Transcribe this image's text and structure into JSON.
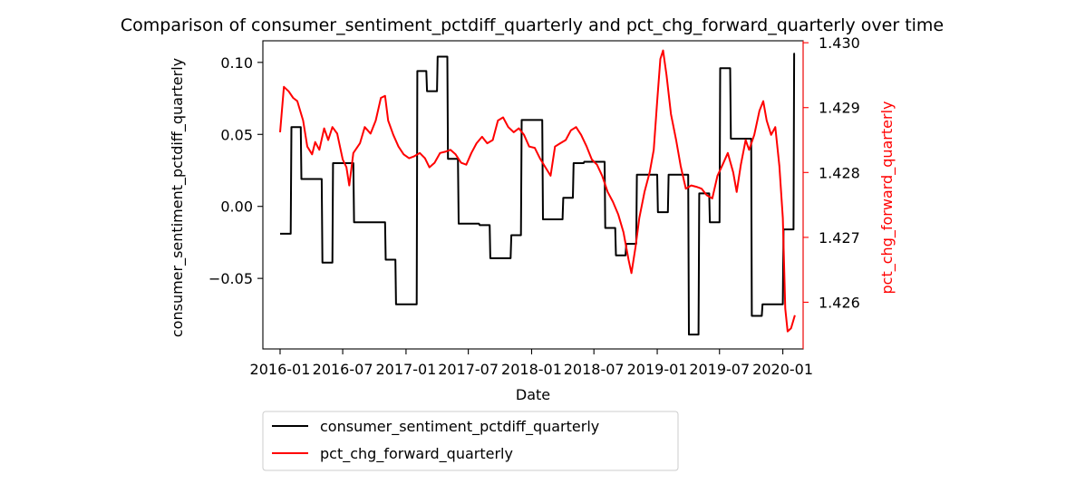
{
  "chart_data": {
    "type": "line",
    "title": "Comparison of consumer_sentiment_pctdiff_quarterly and pct_chg_forward_quarterly over time",
    "xlabel": "Date",
    "ylabel_left": "consumer_sentiment_pctdiff_quarterly",
    "ylabel_right": "pct_chg_forward_quarterly",
    "x_ticks": [
      "2016-01",
      "2016-07",
      "2017-01",
      "2017-07",
      "2018-01",
      "2018-07",
      "2019-01",
      "2019-07",
      "2020-01"
    ],
    "y_left_ticks": [
      "−0.05",
      "0.00",
      "0.05",
      "0.10"
    ],
    "y_left_tick_values": [
      -0.05,
      0.0,
      0.05,
      0.1
    ],
    "y_right_ticks": [
      "1.426",
      "1.427",
      "1.428",
      "1.429",
      "1.430"
    ],
    "y_right_tick_values": [
      1.426,
      1.427,
      1.428,
      1.429,
      1.43
    ],
    "ylim_left": [
      -0.099,
      0.115
    ],
    "ylim_right": [
      1.42528,
      1.43003
    ],
    "xlim": [
      "2015-11-12",
      "2020-02-29"
    ],
    "legend_position": "below",
    "series": [
      {
        "name": "consumer_sentiment_pctdiff_quarterly",
        "axis": "left",
        "color": "#000000",
        "points": [
          [
            "2016-01-01",
            -0.019
          ],
          [
            "2016-02-01",
            -0.019
          ],
          [
            "2016-02-03",
            0.055
          ],
          [
            "2016-03-01",
            0.055
          ],
          [
            "2016-03-03",
            0.019
          ],
          [
            "2016-05-01",
            0.019
          ],
          [
            "2016-05-03",
            -0.039
          ],
          [
            "2016-06-01",
            -0.039
          ],
          [
            "2016-06-03",
            0.03
          ],
          [
            "2016-08-01",
            0.03
          ],
          [
            "2016-08-03",
            -0.011
          ],
          [
            "2016-11-01",
            -0.011
          ],
          [
            "2016-11-03",
            -0.037
          ],
          [
            "2016-12-01",
            -0.037
          ],
          [
            "2016-12-03",
            -0.068
          ],
          [
            "2017-02-01",
            -0.068
          ],
          [
            "2017-02-03",
            0.094
          ],
          [
            "2017-03-01",
            0.094
          ],
          [
            "2017-03-03",
            0.08
          ],
          [
            "2017-04-01",
            0.08
          ],
          [
            "2017-04-03",
            0.104
          ],
          [
            "2017-05-01",
            0.104
          ],
          [
            "2017-05-03",
            0.033
          ],
          [
            "2017-06-01",
            0.033
          ],
          [
            "2017-06-03",
            -0.012
          ],
          [
            "2017-08-01",
            -0.012
          ],
          [
            "2017-08-03",
            -0.013
          ],
          [
            "2017-09-01",
            -0.013
          ],
          [
            "2017-09-03",
            -0.036
          ],
          [
            "2017-11-01",
            -0.036
          ],
          [
            "2017-11-03",
            -0.02
          ],
          [
            "2017-12-01",
            -0.02
          ],
          [
            "2017-12-03",
            0.06
          ],
          [
            "2018-02-01",
            0.06
          ],
          [
            "2018-02-03",
            -0.009
          ],
          [
            "2018-04-01",
            -0.009
          ],
          [
            "2018-04-03",
            0.006
          ],
          [
            "2018-05-01",
            0.006
          ],
          [
            "2018-05-03",
            0.03
          ],
          [
            "2018-06-01",
            0.03
          ],
          [
            "2018-06-03",
            0.031
          ],
          [
            "2018-08-01",
            0.031
          ],
          [
            "2018-08-03",
            -0.015
          ],
          [
            "2018-09-01",
            -0.015
          ],
          [
            "2018-09-03",
            -0.034
          ],
          [
            "2018-10-01",
            -0.034
          ],
          [
            "2018-10-03",
            -0.026
          ],
          [
            "2018-11-01",
            -0.026
          ],
          [
            "2018-11-03",
            0.022
          ],
          [
            "2019-01-01",
            0.022
          ],
          [
            "2019-01-03",
            -0.004
          ],
          [
            "2019-02-01",
            -0.004
          ],
          [
            "2019-02-03",
            0.022
          ],
          [
            "2019-04-01",
            0.022
          ],
          [
            "2019-04-03",
            -0.089
          ],
          [
            "2019-05-01",
            -0.089
          ],
          [
            "2019-05-03",
            0.009
          ],
          [
            "2019-06-01",
            0.009
          ],
          [
            "2019-06-03",
            -0.011
          ],
          [
            "2019-07-01",
            -0.011
          ],
          [
            "2019-07-03",
            0.096
          ],
          [
            "2019-08-01",
            0.096
          ],
          [
            "2019-08-03",
            0.047
          ],
          [
            "2019-10-01",
            0.047
          ],
          [
            "2019-10-03",
            -0.076
          ],
          [
            "2019-11-01",
            -0.076
          ],
          [
            "2019-11-03",
            -0.068
          ],
          [
            "2020-01-01",
            -0.068
          ],
          [
            "2020-01-03",
            -0.016
          ],
          [
            "2020-02-01",
            -0.016
          ],
          [
            "2020-02-03",
            0.106
          ],
          [
            "2020-02-05",
            0.106
          ]
        ]
      },
      {
        "name": "pct_chg_forward_quarterly",
        "axis": "right",
        "color": "#ff0000",
        "points": [
          [
            "2016-01-01",
            1.42862
          ],
          [
            "2016-01-12",
            1.42932
          ],
          [
            "2016-01-26",
            1.42925
          ],
          [
            "2016-02-08",
            1.42915
          ],
          [
            "2016-02-20",
            1.4291
          ],
          [
            "2016-03-08",
            1.4288
          ],
          [
            "2016-03-20",
            1.4284
          ],
          [
            "2016-04-03",
            1.42828
          ],
          [
            "2016-04-12",
            1.42847
          ],
          [
            "2016-04-24",
            1.42835
          ],
          [
            "2016-05-08",
            1.42868
          ],
          [
            "2016-05-20",
            1.4285
          ],
          [
            "2016-06-01",
            1.4287
          ],
          [
            "2016-06-15",
            1.4286
          ],
          [
            "2016-07-01",
            1.4282
          ],
          [
            "2016-07-12",
            1.42808
          ],
          [
            "2016-07-20",
            1.4278
          ],
          [
            "2016-08-01",
            1.4283
          ],
          [
            "2016-08-20",
            1.42845
          ],
          [
            "2016-09-03",
            1.4287
          ],
          [
            "2016-09-20",
            1.4286
          ],
          [
            "2016-10-05",
            1.4288
          ],
          [
            "2016-10-20",
            1.42915
          ],
          [
            "2016-11-01",
            1.42918
          ],
          [
            "2016-11-10",
            1.4288
          ],
          [
            "2016-11-25",
            1.42858
          ],
          [
            "2016-12-10",
            1.4284
          ],
          [
            "2016-12-25",
            1.42828
          ],
          [
            "2017-01-10",
            1.42822
          ],
          [
            "2017-01-25",
            1.42825
          ],
          [
            "2017-02-10",
            1.4283
          ],
          [
            "2017-02-25",
            1.42822
          ],
          [
            "2017-03-10",
            1.42808
          ],
          [
            "2017-03-25",
            1.42815
          ],
          [
            "2017-04-10",
            1.4283
          ],
          [
            "2017-04-25",
            1.42832
          ],
          [
            "2017-05-10",
            1.42835
          ],
          [
            "2017-05-25",
            1.42828
          ],
          [
            "2017-06-10",
            1.42815
          ],
          [
            "2017-06-25",
            1.42812
          ],
          [
            "2017-07-10",
            1.4283
          ],
          [
            "2017-07-25",
            1.42845
          ],
          [
            "2017-08-10",
            1.42855
          ],
          [
            "2017-08-25",
            1.42845
          ],
          [
            "2017-09-10",
            1.4285
          ],
          [
            "2017-09-25",
            1.4288
          ],
          [
            "2017-10-10",
            1.42885
          ],
          [
            "2017-10-25",
            1.4287
          ],
          [
            "2017-11-10",
            1.42862
          ],
          [
            "2017-11-25",
            1.42868
          ],
          [
            "2017-12-10",
            1.42858
          ],
          [
            "2017-12-25",
            1.4284
          ],
          [
            "2018-01-10",
            1.42838
          ],
          [
            "2018-01-25",
            1.42822
          ],
          [
            "2018-02-10",
            1.42808
          ],
          [
            "2018-02-25",
            1.42795
          ],
          [
            "2018-03-10",
            1.4284
          ],
          [
            "2018-03-25",
            1.42845
          ],
          [
            "2018-04-10",
            1.4285
          ],
          [
            "2018-04-25",
            1.42865
          ],
          [
            "2018-05-10",
            1.4287
          ],
          [
            "2018-05-25",
            1.42858
          ],
          [
            "2018-06-10",
            1.4284
          ],
          [
            "2018-06-25",
            1.4282
          ],
          [
            "2018-07-10",
            1.42812
          ],
          [
            "2018-07-25",
            1.42795
          ],
          [
            "2018-08-10",
            1.4277
          ],
          [
            "2018-08-25",
            1.42755
          ],
          [
            "2018-09-10",
            1.42735
          ],
          [
            "2018-09-25",
            1.42708
          ],
          [
            "2018-10-10",
            1.42665
          ],
          [
            "2018-10-18",
            1.42645
          ],
          [
            "2018-10-30",
            1.42685
          ],
          [
            "2018-11-10",
            1.4273
          ],
          [
            "2018-11-25",
            1.4277
          ],
          [
            "2018-12-10",
            1.428
          ],
          [
            "2018-12-22",
            1.42835
          ],
          [
            "2019-01-01",
            1.4291
          ],
          [
            "2019-01-10",
            1.42975
          ],
          [
            "2019-01-18",
            1.42988
          ],
          [
            "2019-01-28",
            1.4295
          ],
          [
            "2019-02-10",
            1.4289
          ],
          [
            "2019-02-25",
            1.4285
          ],
          [
            "2019-03-10",
            1.4281
          ],
          [
            "2019-03-25",
            1.42775
          ],
          [
            "2019-04-10",
            1.4278
          ],
          [
            "2019-04-25",
            1.42778
          ],
          [
            "2019-05-10",
            1.42775
          ],
          [
            "2019-05-25",
            1.42765
          ],
          [
            "2019-06-10",
            1.4276
          ],
          [
            "2019-06-25",
            1.42795
          ],
          [
            "2019-07-10",
            1.42812
          ],
          [
            "2019-07-25",
            1.4283
          ],
          [
            "2019-08-10",
            1.428
          ],
          [
            "2019-08-20",
            1.4277
          ],
          [
            "2019-09-01",
            1.42812
          ],
          [
            "2019-09-15",
            1.4285
          ],
          [
            "2019-09-25",
            1.42835
          ],
          [
            "2019-10-10",
            1.42858
          ],
          [
            "2019-10-25",
            1.42895
          ],
          [
            "2019-11-05",
            1.4291
          ],
          [
            "2019-11-15",
            1.4288
          ],
          [
            "2019-11-28",
            1.42858
          ],
          [
            "2019-12-10",
            1.4287
          ],
          [
            "2019-12-22",
            1.4281
          ],
          [
            "2020-01-01",
            1.4273
          ],
          [
            "2020-01-08",
            1.4259
          ],
          [
            "2020-01-15",
            1.42555
          ],
          [
            "2020-01-25",
            1.4256
          ],
          [
            "2020-02-05",
            1.4258
          ]
        ]
      }
    ]
  }
}
